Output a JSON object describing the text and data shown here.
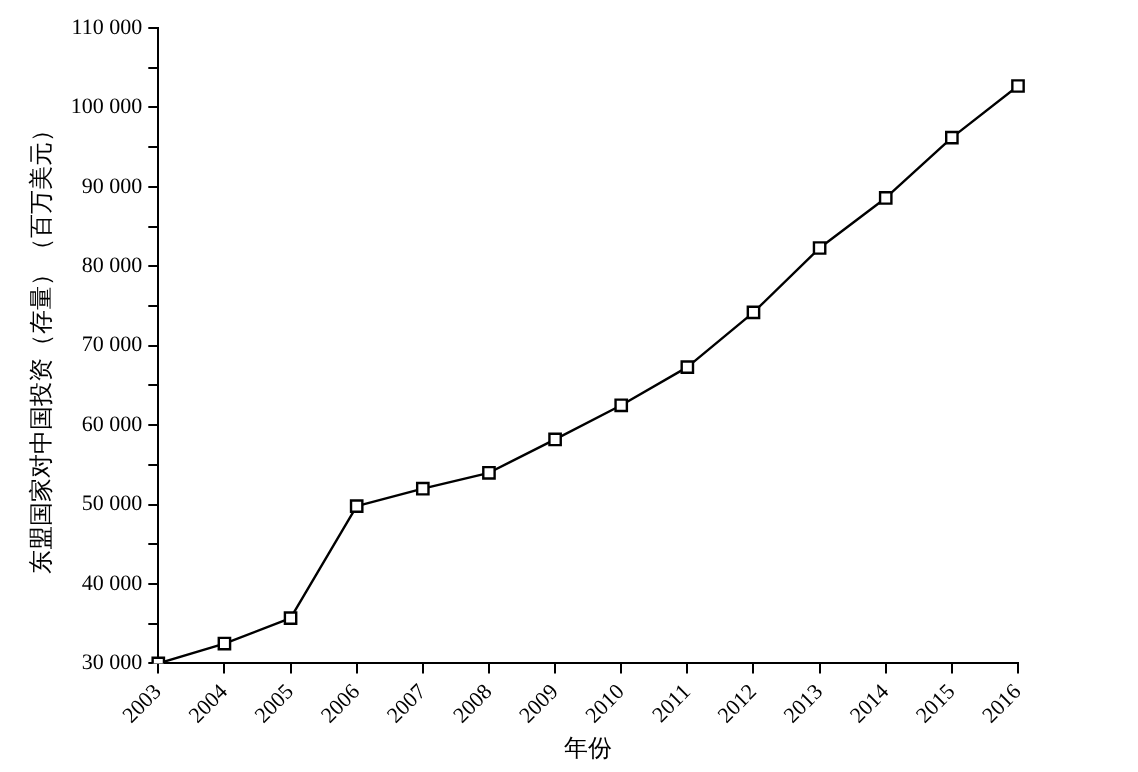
{
  "chart_data": {
    "type": "line",
    "xlabel": "年份",
    "ylabel": "东盟国家对中国投资（存量）（百万美元）",
    "categories": [
      "2003",
      "2004",
      "2005",
      "2006",
      "2007",
      "2008",
      "2009",
      "2010",
      "2011",
      "2012",
      "2013",
      "2014",
      "2015",
      "2016"
    ],
    "series": [
      {
        "color": "#000000",
        "values": [
          30000,
          32500,
          35700,
          49800,
          52000,
          54000,
          58200,
          62500,
          67300,
          74200,
          82300,
          88600,
          96200,
          102700
        ]
      }
    ],
    "ylim": [
      30000,
      110000
    ],
    "yticks": [
      {
        "value": 30000,
        "label": "30 000"
      },
      {
        "value": 35000,
        "label": null
      },
      {
        "value": 40000,
        "label": "40 000"
      },
      {
        "value": 45000,
        "label": null
      },
      {
        "value": 50000,
        "label": "50 000"
      },
      {
        "value": 55000,
        "label": null
      },
      {
        "value": 60000,
        "label": "60 000"
      },
      {
        "value": 65000,
        "label": null
      },
      {
        "value": 70000,
        "label": "70 000"
      },
      {
        "value": 75000,
        "label": null
      },
      {
        "value": 80000,
        "label": "80 000"
      },
      {
        "value": 85000,
        "label": null
      },
      {
        "value": 90000,
        "label": "90 000"
      },
      {
        "value": 95000,
        "label": null
      },
      {
        "value": 100000,
        "label": "100 000"
      },
      {
        "value": 105000,
        "label": null
      },
      {
        "value": 110000,
        "label": "110 000"
      }
    ],
    "grid": false,
    "legend": false,
    "marker": "square",
    "line_style": "solid"
  }
}
